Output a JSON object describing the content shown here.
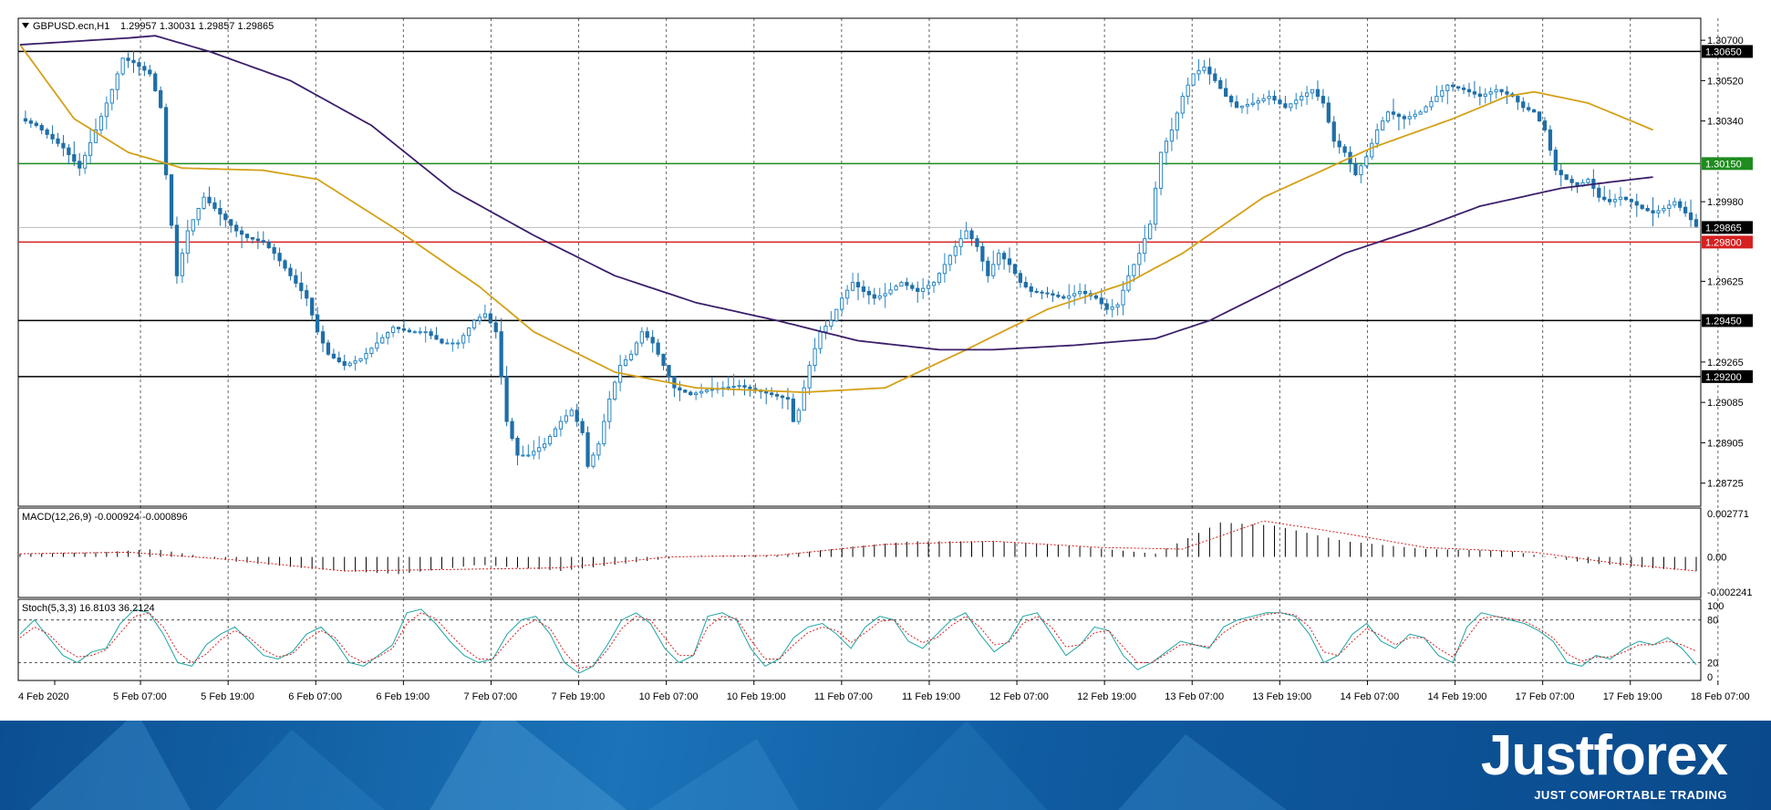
{
  "header": {
    "symbol": "GBPUSD.ecn,H1",
    "ohlc": "1.29957 1.30031 1.29857 1.29865"
  },
  "indicators": {
    "macd_label": "MACD(12,26,9) -0.000924 -0.000896",
    "stoch_label": "Stoch(5,3,3) 16.8103 36.2124"
  },
  "colors": {
    "bull": "#2a86c4",
    "bear": "#1f6fa8",
    "ma_fast": "#d4a017",
    "ma_slow": "#3b1f6b",
    "support_resistance": "#000000",
    "green_level": "#1e8c1e",
    "red_level": "#d62020",
    "macd_signal": "#d62020",
    "stoch_main": "#1fa3a3",
    "stoch_signal": "#d62020",
    "brand": "#0f5aa0"
  },
  "chart_data": [
    {
      "type": "candlestick",
      "title": "GBPUSD.ecn,H1",
      "ylim": [
        1.2863,
        1.3079
      ],
      "y_ticks": [
        "1.30700",
        "1.30520",
        "1.30340",
        "1.29980",
        "1.29625",
        "1.29265",
        "1.29085",
        "1.28905",
        "1.28725"
      ],
      "x_tick_labels": [
        "4 Feb 2020",
        "5 Feb 07:00",
        "5 Feb 19:00",
        "6 Feb 07:00",
        "6 Feb 19:00",
        "7 Feb 07:00",
        "7 Feb 19:00",
        "10 Feb 07:00",
        "10 Feb 19:00",
        "11 Feb 07:00",
        "11 Feb 19:00",
        "12 Feb 07:00",
        "12 Feb 19:00",
        "13 Feb 07:00",
        "13 Feb 19:00",
        "14 Feb 07:00",
        "14 Feb 19:00",
        "17 Feb 07:00",
        "17 Feb 19:00",
        "18 Feb 07:00"
      ],
      "horizontal_levels": [
        {
          "value": 1.3065,
          "label": "1.30650",
          "color": "#000000"
        },
        {
          "value": 1.3015,
          "label": "1.30150",
          "color": "#1e8c1e"
        },
        {
          "value": 1.298,
          "label": "1.29800",
          "color": "#d62020"
        },
        {
          "value": 1.2945,
          "label": "1.29450",
          "color": "#000000"
        },
        {
          "value": 1.292,
          "label": "1.29200",
          "color": "#000000"
        }
      ],
      "current_price": {
        "value": 1.29865,
        "label": "1.29865"
      },
      "anchors": [
        [
          0,
          1.3035
        ],
        [
          3,
          1.3032
        ],
        [
          8,
          1.3022
        ],
        [
          11,
          1.3013
        ],
        [
          14,
          1.303
        ],
        [
          17,
          1.3048
        ],
        [
          19,
          1.3062
        ],
        [
          21,
          1.306
        ],
        [
          24,
          1.3055
        ],
        [
          26,
          1.304
        ],
        [
          27,
          1.301
        ],
        [
          29,
          1.2965
        ],
        [
          31,
          1.2985
        ],
        [
          34,
          1.3
        ],
        [
          36,
          1.2995
        ],
        [
          38,
          1.299
        ],
        [
          40,
          1.2985
        ],
        [
          42,
          1.2982
        ],
        [
          45,
          1.298
        ],
        [
          47,
          1.2975
        ],
        [
          50,
          1.2965
        ],
        [
          53,
          1.2955
        ],
        [
          55,
          1.294
        ],
        [
          57,
          1.293
        ],
        [
          60,
          1.2925
        ],
        [
          63,
          1.2928
        ],
        [
          66,
          1.2935
        ],
        [
          69,
          1.2942
        ],
        [
          72,
          1.294
        ],
        [
          75,
          1.294
        ],
        [
          78,
          1.2935
        ],
        [
          81,
          1.2935
        ],
        [
          84,
          1.2945
        ],
        [
          86,
          1.2948
        ],
        [
          88,
          1.294
        ],
        [
          90,
          1.29
        ],
        [
          92,
          1.2885
        ],
        [
          94,
          1.2885
        ],
        [
          97,
          1.289
        ],
        [
          100,
          1.29
        ],
        [
          102,
          1.2905
        ],
        [
          104,
          1.2895
        ],
        [
          105,
          1.288
        ],
        [
          107,
          1.289
        ],
        [
          109,
          1.291
        ],
        [
          111,
          1.2925
        ],
        [
          113,
          1.293
        ],
        [
          115,
          1.294
        ],
        [
          117,
          1.2935
        ],
        [
          119,
          1.2925
        ],
        [
          121,
          1.2915
        ],
        [
          124,
          1.2912
        ],
        [
          127,
          1.2914
        ],
        [
          130,
          1.2915
        ],
        [
          133,
          1.2916
        ],
        [
          136,
          1.2914
        ],
        [
          139,
          1.2912
        ],
        [
          142,
          1.291
        ],
        [
          143,
          1.29
        ],
        [
          144,
          1.2905
        ],
        [
          146,
          1.2925
        ],
        [
          148,
          1.294
        ],
        [
          150,
          1.2945
        ],
        [
          152,
          1.2955
        ],
        [
          154,
          1.2962
        ],
        [
          156,
          1.2958
        ],
        [
          158,
          1.2955
        ],
        [
          160,
          1.2957
        ],
        [
          163,
          1.2962
        ],
        [
          166,
          1.2958
        ],
        [
          169,
          1.2962
        ],
        [
          171,
          1.297
        ],
        [
          173,
          1.2978
        ],
        [
          175,
          1.2985
        ],
        [
          177,
          1.2978
        ],
        [
          179,
          1.2965
        ],
        [
          181,
          1.2975
        ],
        [
          183,
          1.297
        ],
        [
          185,
          1.2962
        ],
        [
          187,
          1.2958
        ],
        [
          190,
          1.2957
        ],
        [
          193,
          1.2955
        ],
        [
          196,
          1.2958
        ],
        [
          199,
          1.2955
        ],
        [
          201,
          1.295
        ],
        [
          203,
          1.2952
        ],
        [
          205,
          1.2965
        ],
        [
          207,
          1.2975
        ],
        [
          209,
          1.2988
        ],
        [
          211,
          1.302
        ],
        [
          213,
          1.303
        ],
        [
          215,
          1.3045
        ],
        [
          217,
          1.3055
        ],
        [
          219,
          1.3058
        ],
        [
          221,
          1.3052
        ],
        [
          223,
          1.3045
        ],
        [
          225,
          1.304
        ],
        [
          228,
          1.3042
        ],
        [
          231,
          1.3045
        ],
        [
          234,
          1.304
        ],
        [
          237,
          1.3045
        ],
        [
          239,
          1.3048
        ],
        [
          241,
          1.3042
        ],
        [
          243,
          1.3025
        ],
        [
          245,
          1.302
        ],
        [
          247,
          1.301
        ],
        [
          249,
          1.3018
        ],
        [
          251,
          1.303
        ],
        [
          253,
          1.3038
        ],
        [
          256,
          1.3035
        ],
        [
          259,
          1.3038
        ],
        [
          262,
          1.3045
        ],
        [
          264,
          1.305
        ],
        [
          267,
          1.3048
        ],
        [
          270,
          1.3045
        ],
        [
          273,
          1.3048
        ],
        [
          276,
          1.3045
        ],
        [
          278,
          1.304
        ],
        [
          280,
          1.3038
        ],
        [
          282,
          1.303
        ],
        [
          284,
          1.3012
        ],
        [
          286,
          1.3008
        ],
        [
          288,
          1.3005
        ],
        [
          290,
          1.3008
        ],
        [
          292,
          1.3
        ],
        [
          294,
          1.2998
        ],
        [
          296,
          1.3
        ],
        [
          298,
          1.2998
        ],
        [
          300,
          1.2995
        ],
        [
          302,
          1.2993
        ],
        [
          304,
          1.2995
        ],
        [
          306,
          1.2998
        ],
        [
          308,
          1.2993
        ],
        [
          310,
          1.2987
        ]
      ],
      "moving_averages": [
        {
          "color": "#d4a017",
          "points": [
            [
              0,
              1.3068
            ],
            [
              10,
              1.3035
            ],
            [
              20,
              1.302
            ],
            [
              30,
              1.3013
            ],
            [
              45,
              1.3012
            ],
            [
              55,
              1.3008
            ],
            [
              70,
              1.2985
            ],
            [
              85,
              1.296
            ],
            [
              95,
              1.294
            ],
            [
              110,
              1.2922
            ],
            [
              125,
              1.2915
            ],
            [
              145,
              1.2913
            ],
            [
              160,
              1.2915
            ],
            [
              175,
              1.2932
            ],
            [
              190,
              1.295
            ],
            [
              205,
              1.2962
            ],
            [
              215,
              1.2975
            ],
            [
              230,
              1.3
            ],
            [
              250,
              1.3022
            ],
            [
              265,
              1.3035
            ],
            [
              275,
              1.3045
            ],
            [
              280,
              1.3047
            ],
            [
              290,
              1.3042
            ],
            [
              302,
              1.303
            ]
          ]
        },
        {
          "color": "#3b1f6b",
          "points": [
            [
              0,
              1.3068
            ],
            [
              20,
              1.3071
            ],
            [
              25,
              1.3072
            ],
            [
              35,
              1.3065
            ],
            [
              50,
              1.3052
            ],
            [
              65,
              1.3032
            ],
            [
              80,
              1.3003
            ],
            [
              95,
              1.2983
            ],
            [
              110,
              1.2965
            ],
            [
              125,
              1.2953
            ],
            [
              140,
              1.2945
            ],
            [
              155,
              1.2936
            ],
            [
              170,
              1.2932
            ],
            [
              180,
              1.2932
            ],
            [
              195,
              1.2934
            ],
            [
              210,
              1.2937
            ],
            [
              220,
              1.2945
            ],
            [
              230,
              1.2957
            ],
            [
              245,
              1.2975
            ],
            [
              260,
              1.2987
            ],
            [
              270,
              1.2996
            ],
            [
              285,
              1.3004
            ],
            [
              295,
              1.3007
            ],
            [
              302,
              1.3009
            ]
          ]
        }
      ]
    },
    {
      "type": "bar",
      "title": "MACD(12,26,9) -0.000924 -0.000896",
      "ylim": [
        -0.002241,
        0.002771
      ],
      "y_ticks": [
        "0.002771",
        "0.00",
        "-0.002241"
      ],
      "anchors": [
        [
          0,
          0.0002
        ],
        [
          15,
          0.0003
        ],
        [
          25,
          0.0005
        ],
        [
          40,
          -0.0003
        ],
        [
          55,
          -0.0008
        ],
        [
          70,
          -0.0011
        ],
        [
          85,
          -0.0005
        ],
        [
          100,
          -0.0009
        ],
        [
          115,
          -0.0003
        ],
        [
          125,
          0.0001
        ],
        [
          140,
          0.0001
        ],
        [
          155,
          0.0007
        ],
        [
          165,
          0.001
        ],
        [
          180,
          0.001
        ],
        [
          195,
          0.0007
        ],
        [
          210,
          0.0002
        ],
        [
          222,
          0.0022
        ],
        [
          232,
          0.002
        ],
        [
          245,
          0.001
        ],
        [
          260,
          0.0005
        ],
        [
          275,
          0.0004
        ],
        [
          290,
          -0.0004
        ],
        [
          305,
          -0.0008
        ],
        [
          310,
          -0.0009
        ]
      ],
      "signal_anchors": [
        [
          0,
          0.0002
        ],
        [
          20,
          0.0003
        ],
        [
          40,
          -0.0002
        ],
        [
          60,
          -0.0009
        ],
        [
          80,
          -0.0008
        ],
        [
          100,
          -0.0007
        ],
        [
          120,
          0.0
        ],
        [
          140,
          0.0001
        ],
        [
          160,
          0.0008
        ],
        [
          180,
          0.001
        ],
        [
          200,
          0.0006
        ],
        [
          215,
          0.0005
        ],
        [
          230,
          0.0023
        ],
        [
          245,
          0.0015
        ],
        [
          260,
          0.0006
        ],
        [
          280,
          0.0003
        ],
        [
          295,
          -0.0004
        ],
        [
          310,
          -0.0009
        ]
      ]
    },
    {
      "type": "line",
      "title": "Stoch(5,3,3) 16.8103 36.2124",
      "ylim": [
        0,
        100
      ],
      "y_ticks": [
        "100",
        "80",
        "20",
        "0"
      ],
      "levels": [
        80,
        20
      ],
      "series": [
        {
          "color": "#1fa3a3",
          "values": [
            60,
            80,
            55,
            30,
            20,
            35,
            40,
            75,
            95,
            90,
            60,
            20,
            15,
            45,
            60,
            70,
            50,
            30,
            25,
            35,
            60,
            70,
            50,
            20,
            15,
            30,
            45,
            90,
            95,
            75,
            50,
            30,
            20,
            25,
            60,
            80,
            85,
            60,
            20,
            5,
            15,
            45,
            80,
            90,
            75,
            40,
            20,
            30,
            85,
            90,
            80,
            40,
            15,
            25,
            55,
            70,
            75,
            60,
            40,
            70,
            85,
            80,
            50,
            40,
            60,
            80,
            90,
            60,
            35,
            50,
            85,
            90,
            60,
            30,
            45,
            70,
            65,
            30,
            10,
            20,
            35,
            50,
            45,
            40,
            70,
            80,
            85,
            90,
            90,
            85,
            60,
            20,
            30,
            60,
            75,
            50,
            40,
            60,
            55,
            30,
            20,
            70,
            90,
            85,
            80,
            75,
            65,
            50,
            20,
            15,
            30,
            25,
            40,
            50,
            45,
            55,
            40,
            17
          ]
        },
        {
          "color": "#d62020",
          "values": [
            55,
            70,
            60,
            40,
            28,
            30,
            38,
            62,
            85,
            90,
            70,
            35,
            20,
            32,
            52,
            65,
            55,
            38,
            28,
            32,
            52,
            65,
            55,
            30,
            20,
            28,
            40,
            75,
            90,
            82,
            60,
            40,
            25,
            25,
            48,
            70,
            80,
            68,
            35,
            12,
            15,
            38,
            68,
            85,
            80,
            55,
            30,
            30,
            70,
            85,
            82,
            52,
            25,
            25,
            45,
            62,
            70,
            65,
            48,
            62,
            78,
            80,
            60,
            48,
            55,
            72,
            85,
            70,
            45,
            48,
            75,
            85,
            70,
            42,
            45,
            62,
            65,
            42,
            20,
            20,
            32,
            45,
            45,
            42,
            62,
            75,
            82,
            88,
            90,
            87,
            70,
            35,
            30,
            50,
            68,
            58,
            45,
            55,
            55,
            40,
            28,
            55,
            82,
            85,
            82,
            78,
            68,
            55,
            32,
            22,
            28,
            28,
            35,
            45,
            45,
            50,
            45,
            36
          ]
        }
      ]
    }
  ],
  "brand": {
    "name": "Justforex",
    "tagline": "JUST COMFORTABLE TRADING"
  }
}
